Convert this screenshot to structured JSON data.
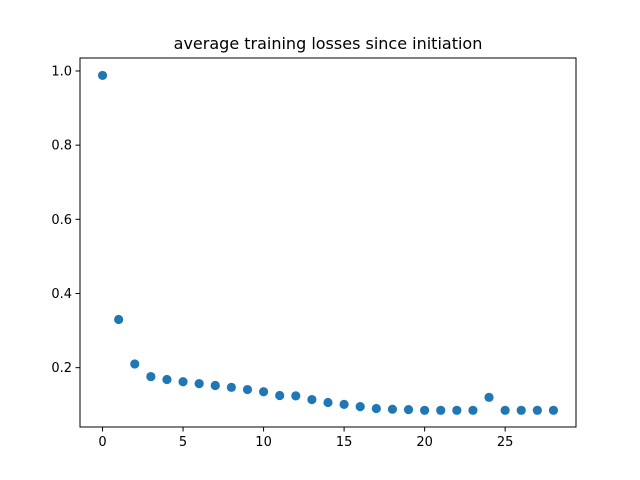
{
  "chart_data": {
    "type": "scatter",
    "title": "average training losses since initiation",
    "xlabel": "",
    "ylabel": "",
    "xlim": [
      -1.4,
      29.4
    ],
    "ylim": [
      0.04,
      1.035
    ],
    "x_ticks": [
      0,
      5,
      10,
      15,
      20,
      25
    ],
    "x_tick_labels": [
      "0",
      "5",
      "10",
      "15",
      "20",
      "25"
    ],
    "y_ticks": [
      0.2,
      0.4,
      0.6,
      0.8,
      1.0
    ],
    "y_tick_labels": [
      "0.2",
      "0.4",
      "0.6",
      "0.8",
      "1.0"
    ],
    "grid": false,
    "legend": "none",
    "series": [
      {
        "color": "#1f77b4",
        "x": [
          0,
          1,
          2,
          3,
          4,
          5,
          6,
          7,
          8,
          9,
          10,
          11,
          12,
          13,
          14,
          15,
          16,
          17,
          18,
          19,
          20,
          21,
          22,
          23,
          24,
          25,
          26,
          27,
          28
        ],
        "y": [
          0.988,
          0.33,
          0.21,
          0.176,
          0.168,
          0.162,
          0.157,
          0.152,
          0.147,
          0.141,
          0.135,
          0.125,
          0.124,
          0.114,
          0.106,
          0.101,
          0.095,
          0.09,
          0.088,
          0.087,
          0.085,
          0.085,
          0.085,
          0.085,
          0.12,
          0.085,
          0.085,
          0.085,
          0.085
        ]
      }
    ]
  }
}
